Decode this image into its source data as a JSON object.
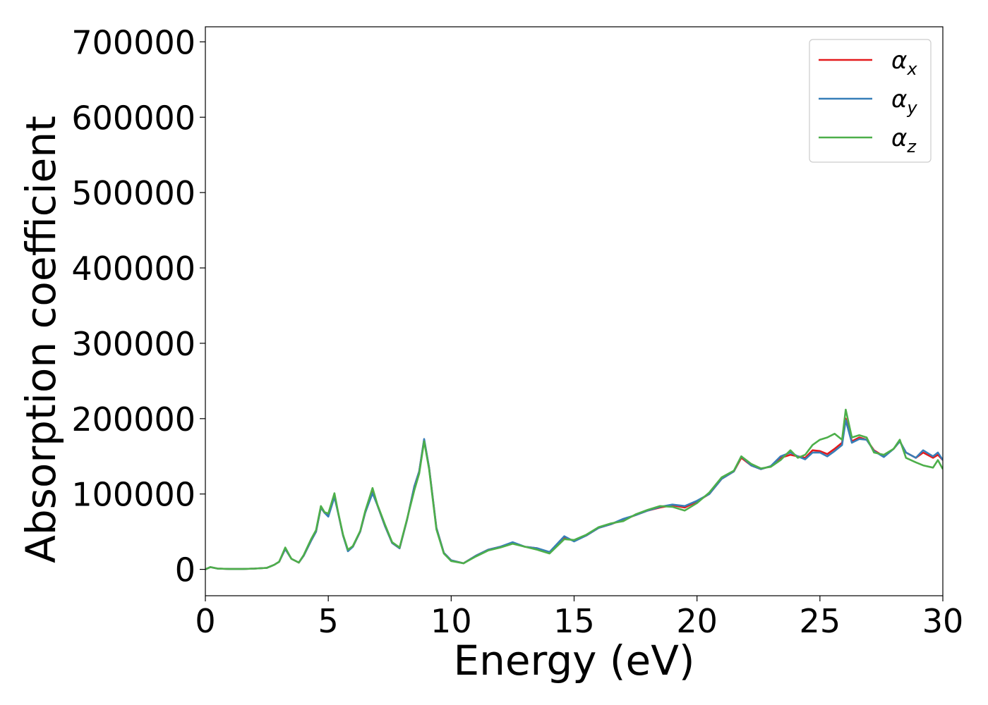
{
  "chart_data": {
    "type": "line",
    "title": "",
    "xlabel": "Energy (eV)",
    "ylabel": "Absorption coefficient",
    "xlim": [
      0,
      30
    ],
    "ylim": [
      -35000,
      720000
    ],
    "xticks": [
      0,
      5,
      10,
      15,
      20,
      25,
      30
    ],
    "xtick_labels": [
      "0",
      "5",
      "10",
      "15",
      "20",
      "25",
      "30"
    ],
    "yticks": [
      0,
      100000,
      200000,
      300000,
      400000,
      500000,
      600000,
      700000
    ],
    "ytick_labels": [
      "0",
      "100000",
      "200000",
      "300000",
      "400000",
      "500000",
      "600000",
      "700000"
    ],
    "grid": false,
    "legend_position": "top-right",
    "x": [
      0,
      0.2,
      0.5,
      1.0,
      1.5,
      2.0,
      2.5,
      2.8,
      3.0,
      3.25,
      3.5,
      3.8,
      4.0,
      4.3,
      4.5,
      4.7,
      4.85,
      5.0,
      5.25,
      5.4,
      5.6,
      5.8,
      6.0,
      6.3,
      6.5,
      6.8,
      7.0,
      7.3,
      7.6,
      7.9,
      8.2,
      8.5,
      8.7,
      8.9,
      9.1,
      9.4,
      9.7,
      10.0,
      10.5,
      11.0,
      11.5,
      12.0,
      12.5,
      13.0,
      13.5,
      14.0,
      14.6,
      15.0,
      15.5,
      16.0,
      16.5,
      17.0,
      17.5,
      18.0,
      18.5,
      19.0,
      19.5,
      20.0,
      20.5,
      21.0,
      21.5,
      21.8,
      22.2,
      22.6,
      23.0,
      23.4,
      23.8,
      24.1,
      24.4,
      24.7,
      25.0,
      25.3,
      25.6,
      25.9,
      26.05,
      26.3,
      26.6,
      26.9,
      27.2,
      27.6,
      28.0,
      28.25,
      28.5,
      28.9,
      29.2,
      29.6,
      29.8,
      30.0
    ],
    "series": [
      {
        "name": "αx",
        "label_base": "α",
        "label_sub": "x",
        "color": "#e41a1c",
        "values": [
          0,
          3000,
          1000,
          500,
          500,
          1000,
          2000,
          6000,
          10000,
          27000,
          14000,
          9000,
          18000,
          38000,
          50000,
          82000,
          75000,
          72000,
          98000,
          75000,
          45000,
          25000,
          30000,
          50000,
          75000,
          103000,
          85000,
          58000,
          35000,
          28000,
          65000,
          110000,
          130000,
          172000,
          135000,
          55000,
          22000,
          12000,
          8000,
          18000,
          26000,
          30000,
          35000,
          30000,
          28000,
          22000,
          42000,
          38000,
          45000,
          55000,
          60000,
          66000,
          72000,
          78000,
          82000,
          85000,
          82000,
          90000,
          100000,
          120000,
          130000,
          148000,
          138000,
          133000,
          137000,
          148000,
          152000,
          150000,
          148000,
          158000,
          157000,
          153000,
          160000,
          168000,
          200000,
          170000,
          175000,
          172000,
          158000,
          150000,
          160000,
          170000,
          155000,
          148000,
          155000,
          148000,
          152000,
          145000
        ]
      },
      {
        "name": "αy",
        "label_base": "α",
        "label_sub": "y",
        "color": "#377eb8",
        "values": [
          0,
          3000,
          1000,
          500,
          500,
          1000,
          2000,
          6000,
          10000,
          27000,
          14000,
          9000,
          18000,
          38000,
          50000,
          82000,
          75000,
          70000,
          96000,
          75000,
          45000,
          24000,
          30000,
          50000,
          75000,
          101000,
          85000,
          58000,
          35000,
          28000,
          65000,
          110000,
          130000,
          173000,
          135000,
          55000,
          22000,
          12000,
          8000,
          18000,
          26000,
          30000,
          36000,
          30000,
          28000,
          23000,
          44000,
          37000,
          45000,
          55000,
          60000,
          67000,
          72000,
          78000,
          83000,
          86000,
          84000,
          91000,
          100000,
          120000,
          130000,
          150000,
          138000,
          133000,
          137000,
          150000,
          155000,
          150000,
          146000,
          155000,
          155000,
          150000,
          157000,
          165000,
          198000,
          168000,
          173000,
          172000,
          157000,
          149000,
          160000,
          170000,
          155000,
          148000,
          158000,
          150000,
          155000,
          145000
        ]
      },
      {
        "name": "αz",
        "label_base": "α",
        "label_sub": "z",
        "color": "#4daf4a",
        "values": [
          0,
          3000,
          1000,
          500,
          500,
          1000,
          2000,
          6000,
          10000,
          29000,
          14000,
          9000,
          19000,
          40000,
          52000,
          84000,
          76000,
          74000,
          101000,
          76000,
          46000,
          26000,
          31000,
          51000,
          77000,
          108000,
          86000,
          60000,
          36000,
          29000,
          66000,
          105000,
          127000,
          170000,
          133000,
          53000,
          21000,
          11000,
          8000,
          17000,
          25000,
          29000,
          34000,
          30000,
          26000,
          21000,
          40000,
          39000,
          46000,
          56000,
          61000,
          64000,
          73000,
          79000,
          84000,
          83000,
          78000,
          88000,
          102000,
          122000,
          131000,
          150000,
          140000,
          134000,
          136000,
          145000,
          158000,
          148000,
          152000,
          165000,
          172000,
          175000,
          180000,
          172000,
          212000,
          175000,
          178000,
          175000,
          155000,
          152000,
          160000,
          172000,
          148000,
          142000,
          138000,
          135000,
          145000,
          133000
        ]
      }
    ]
  }
}
